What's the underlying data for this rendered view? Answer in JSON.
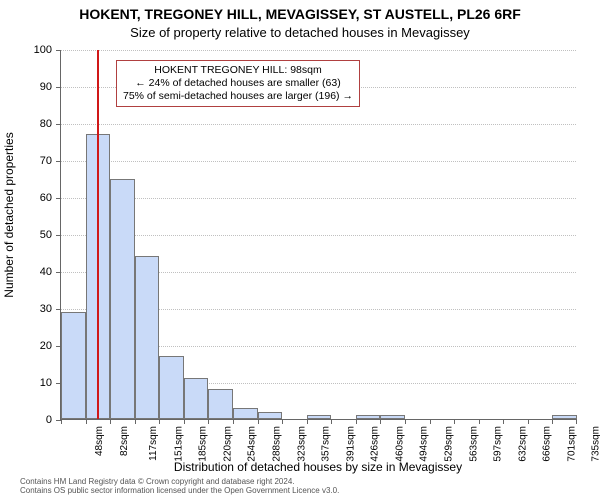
{
  "title_main": "HOKENT, TREGONEY HILL, MEVAGISSEY, ST AUSTELL, PL26 6RF",
  "title_sub": "Size of property relative to detached houses in Mevagissey",
  "yaxis_label": "Number of detached properties",
  "xaxis_label": "Distribution of detached houses by size in Mevagissey",
  "footer_line1": "Contains HM Land Registry data © Crown copyright and database right 2024.",
  "footer_line2": "Contains OS public sector information licensed under the Open Government Licence v3.0.",
  "chart": {
    "type": "histogram",
    "ylim": [
      0,
      100
    ],
    "ytick_step": 10,
    "background_color": "#ffffff",
    "grid_color": "#c0c0c0",
    "axis_color": "#666666",
    "bar_fill": "#c9daf8",
    "bar_stroke": "#777777",
    "marker_color": "#d01818",
    "marker_value_sqm": 98,
    "x_start": 48,
    "x_step": 34.37,
    "categories": [
      "48sqm",
      "82sqm",
      "117sqm",
      "151sqm",
      "185sqm",
      "220sqm",
      "254sqm",
      "288sqm",
      "323sqm",
      "357sqm",
      "391sqm",
      "426sqm",
      "460sqm",
      "494sqm",
      "529sqm",
      "563sqm",
      "597sqm",
      "632sqm",
      "666sqm",
      "701sqm",
      "735sqm"
    ],
    "values": [
      29,
      77,
      65,
      44,
      17,
      11,
      8,
      3,
      2,
      0,
      1,
      0,
      1,
      1,
      0,
      0,
      0,
      0,
      0,
      0,
      1
    ],
    "annotation": {
      "line1": "HOKENT TREGONEY HILL: 98sqm",
      "line2": "← 24% of detached houses are smaller (63)",
      "line3": "75% of semi-detached houses are larger (196) →",
      "border_color": "#b04040"
    }
  }
}
